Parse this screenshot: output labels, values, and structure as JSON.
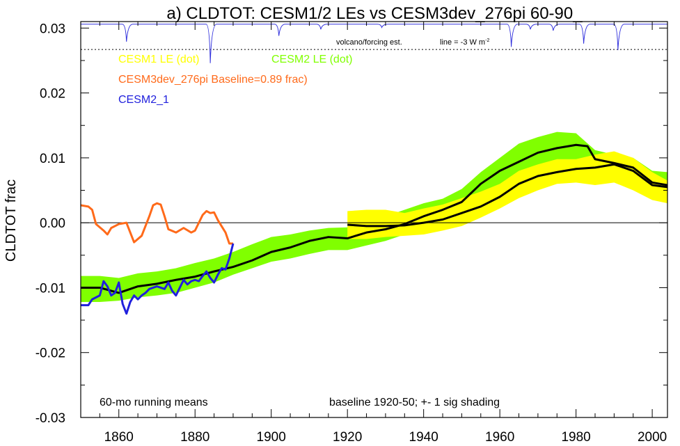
{
  "chart_data": {
    "type": "line",
    "title": "a) CLDTOT: CESM1/2 LEs vs CESM3dev_276pi 60-90_",
    "xlabel": "",
    "ylabel": "CLDTOT frac",
    "xlim": [
      1850,
      2004
    ],
    "ylim": [
      -0.03,
      0.031
    ],
    "xticks": [
      1860,
      1880,
      1900,
      1920,
      1940,
      1960,
      1980,
      2000
    ],
    "xtick_labels": [
      "1860",
      "1880",
      "1900",
      "1920",
      "1940",
      "1960",
      "1980",
      "2000"
    ],
    "yticks": [
      -0.03,
      -0.02,
      -0.01,
      0.0,
      0.01,
      0.02,
      0.03
    ],
    "ytick_labels": [
      "-0.03",
      "-0.02",
      "-0.01",
      "0.00",
      "0.01",
      "0.02",
      "0.03"
    ],
    "legend": [
      {
        "label": "CESM1 LE (dot)",
        "color": "#ffff00"
      },
      {
        "label": "CESM2 LE (dot)",
        "color": "#80ff00"
      },
      {
        "label": "CESM3dev_276pi Baseline=0.89 frac)",
        "color": "#ff6a1a"
      },
      {
        "label": "CESM2_1",
        "color": "#2020dd"
      }
    ],
    "annotations": {
      "volcano": "volcano/forcing est.",
      "line_label": "line = -3 W m",
      "line_exp": "-2",
      "running_mean": "60-mo running means",
      "baseline_note": "baseline 1920-50; +- 1 sig shading"
    },
    "dotted_line_y": 0.0267,
    "volcano_dips": [
      {
        "year": 1862,
        "depth": 0.0027
      },
      {
        "year": 1884,
        "depth": 0.006
      },
      {
        "year": 1902,
        "depth": 0.0018
      },
      {
        "year": 1913,
        "depth": 0.0008
      },
      {
        "year": 1929,
        "depth": 0.0005
      },
      {
        "year": 1963,
        "depth": 0.0035
      },
      {
        "year": 1968,
        "depth": 0.0008
      },
      {
        "year": 1974,
        "depth": 0.001
      },
      {
        "year": 1982,
        "depth": 0.003
      },
      {
        "year": 1991,
        "depth": 0.004
      }
    ],
    "series": [
      {
        "name": "CESM2 LE",
        "kind": "band",
        "color": "#80ff00",
        "x": [
          1850,
          1855,
          1860,
          1865,
          1870,
          1875,
          1880,
          1885,
          1890,
          1895,
          1900,
          1905,
          1910,
          1915,
          1920,
          1925,
          1930,
          1935,
          1940,
          1945,
          1950,
          1955,
          1960,
          1965,
          1970,
          1975,
          1980,
          1985,
          1990,
          1995,
          2000,
          2004
        ],
        "upper": [
          -0.0082,
          -0.0082,
          -0.0085,
          -0.0078,
          -0.0075,
          -0.007,
          -0.0062,
          -0.0055,
          -0.0045,
          -0.0033,
          -0.0022,
          -0.0018,
          -0.0012,
          -0.0008,
          -0.0007,
          0.0002,
          0.001,
          0.002,
          0.003,
          0.0037,
          0.0052,
          0.0078,
          0.01,
          0.0122,
          0.0132,
          0.014,
          0.0138,
          0.0112,
          0.0105,
          0.01,
          0.008,
          0.0078
        ],
        "lower": [
          -0.0122,
          -0.0122,
          -0.012,
          -0.0115,
          -0.0112,
          -0.0108,
          -0.01,
          -0.0092,
          -0.008,
          -0.007,
          -0.006,
          -0.0055,
          -0.0048,
          -0.0042,
          -0.0042,
          -0.0035,
          -0.0028,
          -0.0018,
          -0.0005,
          0.0002,
          0.0017,
          0.004,
          0.0058,
          0.0076,
          0.0082,
          0.0092,
          0.0095,
          0.0072,
          0.0065,
          0.0058,
          0.004,
          0.0038
        ]
      },
      {
        "name": "CESM1 LE",
        "kind": "band",
        "color": "#ffff00",
        "x": [
          1920,
          1925,
          1930,
          1935,
          1940,
          1945,
          1950,
          1955,
          1960,
          1965,
          1970,
          1975,
          1980,
          1985,
          1990,
          1995,
          2000,
          2004
        ],
        "upper": [
          0.0018,
          0.002,
          0.002,
          0.0015,
          0.0022,
          0.0028,
          0.0038,
          0.0048,
          0.006,
          0.008,
          0.009,
          0.0098,
          0.0098,
          0.0105,
          0.011,
          0.01,
          0.0078,
          0.0065
        ],
        "lower": [
          -0.0025,
          -0.0025,
          -0.0022,
          -0.002,
          -0.0018,
          -0.0012,
          -0.0005,
          0.0008,
          0.0022,
          0.0038,
          0.005,
          0.006,
          0.0062,
          0.0058,
          0.0062,
          0.005,
          0.0035,
          0.003
        ]
      },
      {
        "name": "CESM2 LE mean",
        "kind": "line",
        "color": "#000000",
        "x": [
          1850,
          1855,
          1860,
          1865,
          1870,
          1875,
          1880,
          1885,
          1890,
          1895,
          1900,
          1905,
          1910,
          1915,
          1920,
          1925,
          1930,
          1935,
          1940,
          1945,
          1950,
          1955,
          1960,
          1965,
          1970,
          1975,
          1978,
          1980,
          1983,
          1985,
          1990,
          1995,
          2000,
          2004
        ],
        "y": [
          -0.01,
          -0.01,
          -0.0108,
          -0.0098,
          -0.0094,
          -0.0088,
          -0.0083,
          -0.0075,
          -0.0068,
          -0.0058,
          -0.0045,
          -0.0038,
          -0.0028,
          -0.0022,
          -0.0024,
          -0.0015,
          -0.001,
          -0.0002,
          0.001,
          0.002,
          0.0032,
          0.006,
          0.008,
          0.0094,
          0.0108,
          0.0115,
          0.0118,
          0.012,
          0.0118,
          0.0098,
          0.0092,
          0.0085,
          0.0062,
          0.0058
        ]
      },
      {
        "name": "CESM1 LE mean",
        "kind": "line",
        "color": "#000000",
        "x": [
          1920,
          1925,
          1930,
          1935,
          1940,
          1945,
          1950,
          1955,
          1960,
          1965,
          1970,
          1975,
          1980,
          1985,
          1990,
          1995,
          2000,
          2004
        ],
        "y": [
          -0.0003,
          -0.0005,
          -0.0005,
          -0.0004,
          0.0,
          0.0005,
          0.0015,
          0.0025,
          0.004,
          0.006,
          0.0072,
          0.0078,
          0.0083,
          0.0085,
          0.009,
          0.008,
          0.0058,
          0.0055
        ]
      },
      {
        "name": "CESM3dev_276pi",
        "kind": "line",
        "color": "#ff6a1a",
        "x": [
          1850,
          1852,
          1853,
          1854,
          1856,
          1857,
          1858,
          1860,
          1862,
          1863,
          1864,
          1866,
          1868,
          1869,
          1870,
          1871,
          1872,
          1873,
          1875,
          1877,
          1879,
          1880,
          1882,
          1883,
          1884,
          1885,
          1886,
          1888,
          1889,
          1890
        ],
        "y": [
          0.0027,
          0.0025,
          0.002,
          -0.0002,
          -0.0012,
          -0.0018,
          -0.0008,
          -0.0002,
          0.0,
          -0.0015,
          -0.003,
          -0.002,
          0.001,
          0.0027,
          0.003,
          0.0028,
          0.001,
          -0.001,
          -0.0015,
          -0.0008,
          -0.0015,
          -0.0012,
          0.0012,
          0.0018,
          0.0015,
          0.0016,
          0.0004,
          -0.0015,
          -0.0032,
          -0.0032
        ]
      },
      {
        "name": "CESM2_1",
        "kind": "line",
        "color": "#2020dd",
        "x": [
          1850,
          1852,
          1853,
          1855,
          1856,
          1857,
          1858,
          1859,
          1860,
          1861,
          1862,
          1863,
          1864,
          1865,
          1866,
          1867,
          1868,
          1870,
          1871,
          1872,
          1873,
          1874,
          1875,
          1876,
          1877,
          1878,
          1879,
          1880,
          1881,
          1882,
          1883,
          1884,
          1885,
          1886,
          1887,
          1888,
          1889,
          1890
        ],
        "y": [
          -0.0127,
          -0.0127,
          -0.0118,
          -0.0112,
          -0.009,
          -0.0098,
          -0.0112,
          -0.0108,
          -0.0092,
          -0.0125,
          -0.014,
          -0.0122,
          -0.0112,
          -0.0118,
          -0.0112,
          -0.0108,
          -0.0102,
          -0.0098,
          -0.01,
          -0.0102,
          -0.0092,
          -0.0105,
          -0.0112,
          -0.01,
          -0.0088,
          -0.0095,
          -0.009,
          -0.0088,
          -0.009,
          -0.0082,
          -0.0075,
          -0.0085,
          -0.0092,
          -0.008,
          -0.007,
          -0.0072,
          -0.0055,
          -0.0032
        ]
      }
    ]
  }
}
